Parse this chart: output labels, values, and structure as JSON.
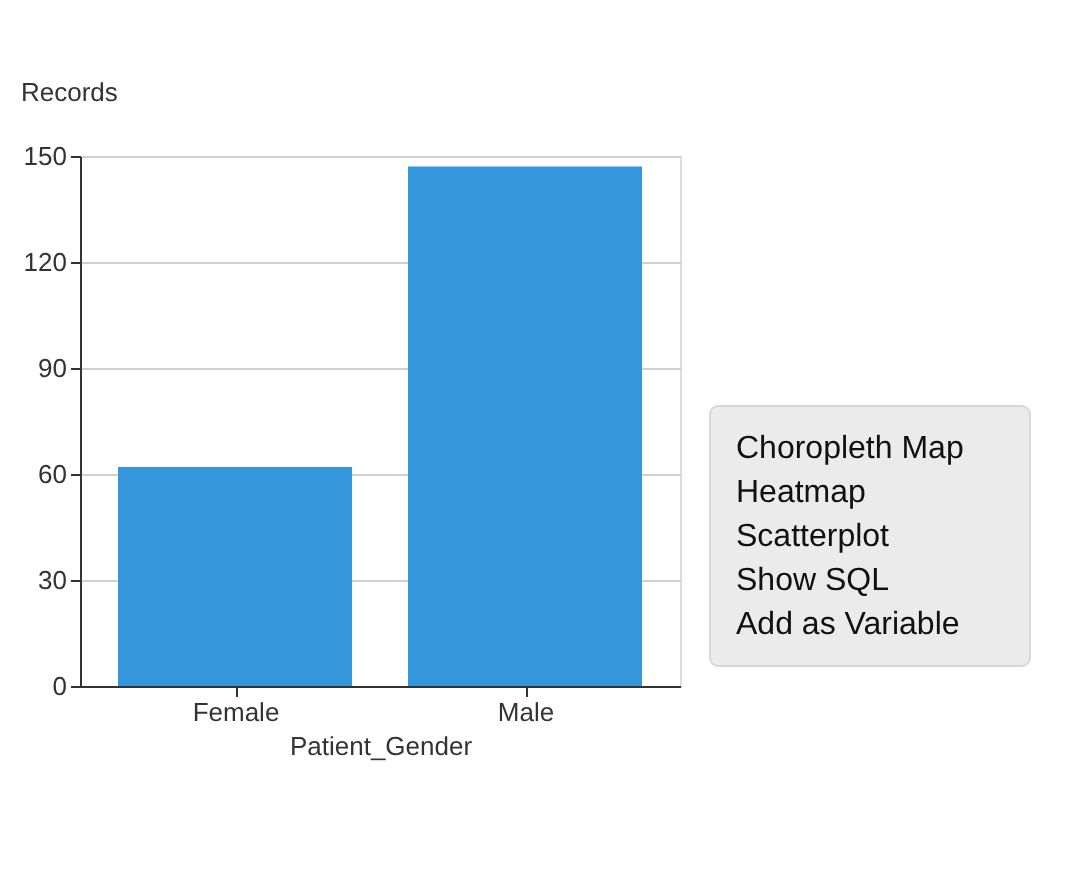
{
  "chart_data": {
    "type": "bar",
    "xlabel": "Patient_Gender",
    "ylabel": "Records",
    "categories": [
      "Female",
      "Male"
    ],
    "values": [
      62,
      147
    ],
    "color": "#3497db",
    "ylim": [
      0,
      150
    ],
    "yticks": [
      0,
      30,
      60,
      90,
      120,
      150
    ],
    "grid": "y",
    "annotations": [
      "Choropleth Map",
      "Heatmap",
      "Scatterplot",
      "Show SQL",
      "Add as Variable"
    ]
  }
}
